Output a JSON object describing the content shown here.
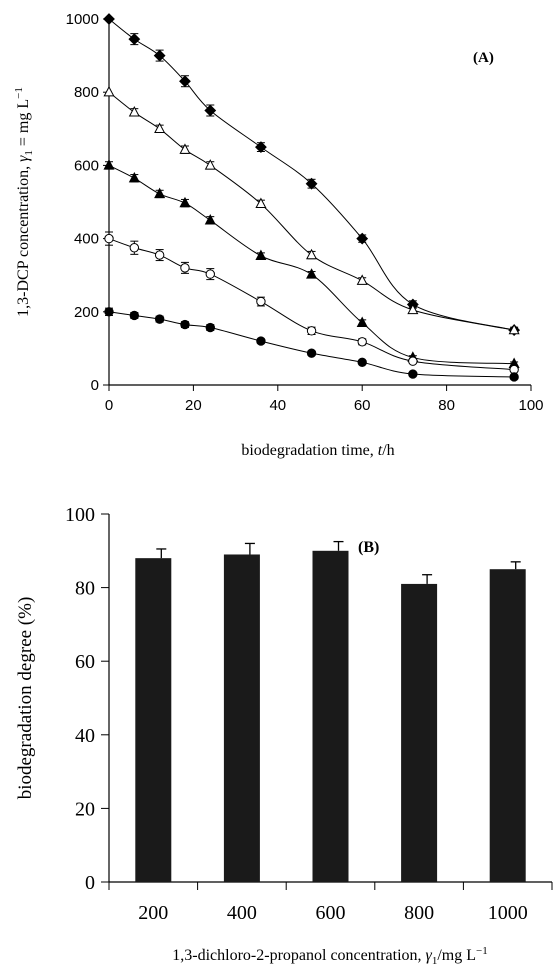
{
  "chart_data": [
    {
      "type": "line",
      "panel_label": "(A)",
      "xlabel_main": "biodegradation time, ",
      "xlabel_var": "t",
      "xlabel_unit": "/h",
      "ylabel": "1,3-DCP concentration, γ1 = mg L−1",
      "ylabel_prefix": "1,3-DCP concentration, ",
      "ylabel_sym": "γ",
      "ylabel_sub": "1",
      "ylabel_suffix": " = mg L",
      "ylabel_sup": "−1",
      "xlim": [
        0,
        100
      ],
      "ylim": [
        0,
        1000
      ],
      "x_ticks": [
        0,
        20,
        40,
        60,
        80,
        100
      ],
      "y_ticks": [
        0,
        200,
        400,
        600,
        800,
        1000
      ],
      "x_tick_labels": [
        "0",
        "20",
        "40",
        "60",
        "80",
        "100"
      ],
      "y_tick_labels": [
        "0",
        "200",
        "400",
        "600",
        "800",
        "1000"
      ],
      "grid": false,
      "series": [
        {
          "marker": "diamond-filled",
          "x": [
            0,
            6,
            12,
            18,
            24,
            36,
            48,
            60,
            72,
            96
          ],
          "y": [
            1000,
            945,
            900,
            830,
            750,
            650,
            550,
            400,
            220,
            150
          ],
          "err": [
            0,
            15,
            15,
            15,
            15,
            12,
            12,
            10,
            10,
            8
          ]
        },
        {
          "marker": "triangle-open",
          "x": [
            0,
            6,
            12,
            18,
            24,
            36,
            48,
            60,
            72,
            96
          ],
          "y": [
            800,
            745,
            700,
            643,
            600,
            495,
            355,
            285,
            205,
            150
          ],
          "err": [
            0,
            10,
            10,
            10,
            10,
            10,
            10,
            8,
            8,
            5
          ]
        },
        {
          "marker": "triangle-filled",
          "x": [
            0,
            6,
            12,
            18,
            24,
            36,
            48,
            60,
            72,
            96
          ],
          "y": [
            600,
            565,
            522,
            497,
            450,
            353,
            302,
            170,
            75,
            58
          ],
          "err": [
            10,
            10,
            10,
            10,
            10,
            8,
            8,
            8,
            5,
            5
          ]
        },
        {
          "marker": "circle-open",
          "x": [
            0,
            6,
            12,
            18,
            24,
            36,
            48,
            60,
            72,
            96
          ],
          "y": [
            400,
            375,
            355,
            320,
            303,
            228,
            148,
            118,
            65,
            42
          ],
          "err": [
            18,
            18,
            15,
            15,
            15,
            12,
            10,
            8,
            5,
            5
          ]
        },
        {
          "marker": "circle-filled",
          "x": [
            0,
            6,
            12,
            18,
            24,
            36,
            48,
            60,
            72,
            96
          ],
          "y": [
            200,
            190,
            180,
            165,
            157,
            120,
            87,
            62,
            30,
            22
          ],
          "err": [
            10,
            8,
            8,
            8,
            8,
            6,
            6,
            5,
            4,
            4
          ]
        }
      ]
    },
    {
      "type": "bar",
      "panel_label": "(B)",
      "xlabel": "1,3-dichloro-2-propanol concentration, γ1/mg L−1",
      "xlabel_prefix": "1,3-dichloro-2-propanol concentration, ",
      "xlabel_sym": "γ",
      "xlabel_sub": "1",
      "xlabel_suffix": "/mg L",
      "xlabel_sup": "−1",
      "ylabel": "biodegradation degree (%)",
      "ylim": [
        0,
        100
      ],
      "y_ticks": [
        0,
        20,
        40,
        60,
        80,
        100
      ],
      "y_tick_labels": [
        "0",
        "20",
        "40",
        "60",
        "80",
        "100"
      ],
      "categories": [
        "200",
        "400",
        "600",
        "800",
        "1000"
      ],
      "values": [
        88,
        89,
        90,
        81,
        85
      ],
      "errors": [
        2.5,
        3,
        2.5,
        2.5,
        2
      ],
      "bar_color": "#1a1a1a",
      "grid": false
    }
  ]
}
